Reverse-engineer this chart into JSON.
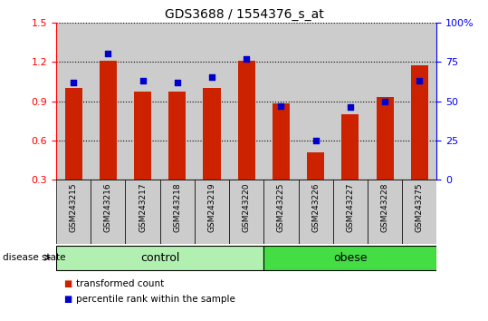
{
  "title": "GDS3688 / 1554376_s_at",
  "samples": [
    "GSM243215",
    "GSM243216",
    "GSM243217",
    "GSM243218",
    "GSM243219",
    "GSM243220",
    "GSM243225",
    "GSM243226",
    "GSM243227",
    "GSM243228",
    "GSM243275"
  ],
  "transformed_count": [
    1.0,
    1.21,
    0.97,
    0.97,
    1.0,
    1.21,
    0.88,
    0.51,
    0.8,
    0.93,
    1.17
  ],
  "percentile_rank": [
    62,
    80,
    63,
    62,
    65,
    77,
    47,
    25,
    46,
    50,
    63
  ],
  "groups": [
    {
      "name": "control",
      "start": 0,
      "end": 6,
      "color": "#b2f0b2"
    },
    {
      "name": "obese",
      "start": 6,
      "end": 11,
      "color": "#44dd44"
    }
  ],
  "bar_color": "#cc2200",
  "dot_color": "#0000cc",
  "ylim_left": [
    0.3,
    1.5
  ],
  "ylim_right": [
    0,
    100
  ],
  "yticks_left": [
    0.3,
    0.6,
    0.9,
    1.2,
    1.5
  ],
  "yticks_right": [
    0,
    25,
    50,
    75,
    100
  ],
  "ytick_labels_right": [
    "0",
    "25",
    "50",
    "75",
    "100%"
  ],
  "bar_width": 0.5,
  "dot_size": 20,
  "background_color": "#ffffff",
  "plot_bg_color": "#cccccc",
  "xtick_bg_color": "#cccccc",
  "disease_state_label": "disease state",
  "legend_items": [
    "transformed count",
    "percentile rank within the sample"
  ]
}
